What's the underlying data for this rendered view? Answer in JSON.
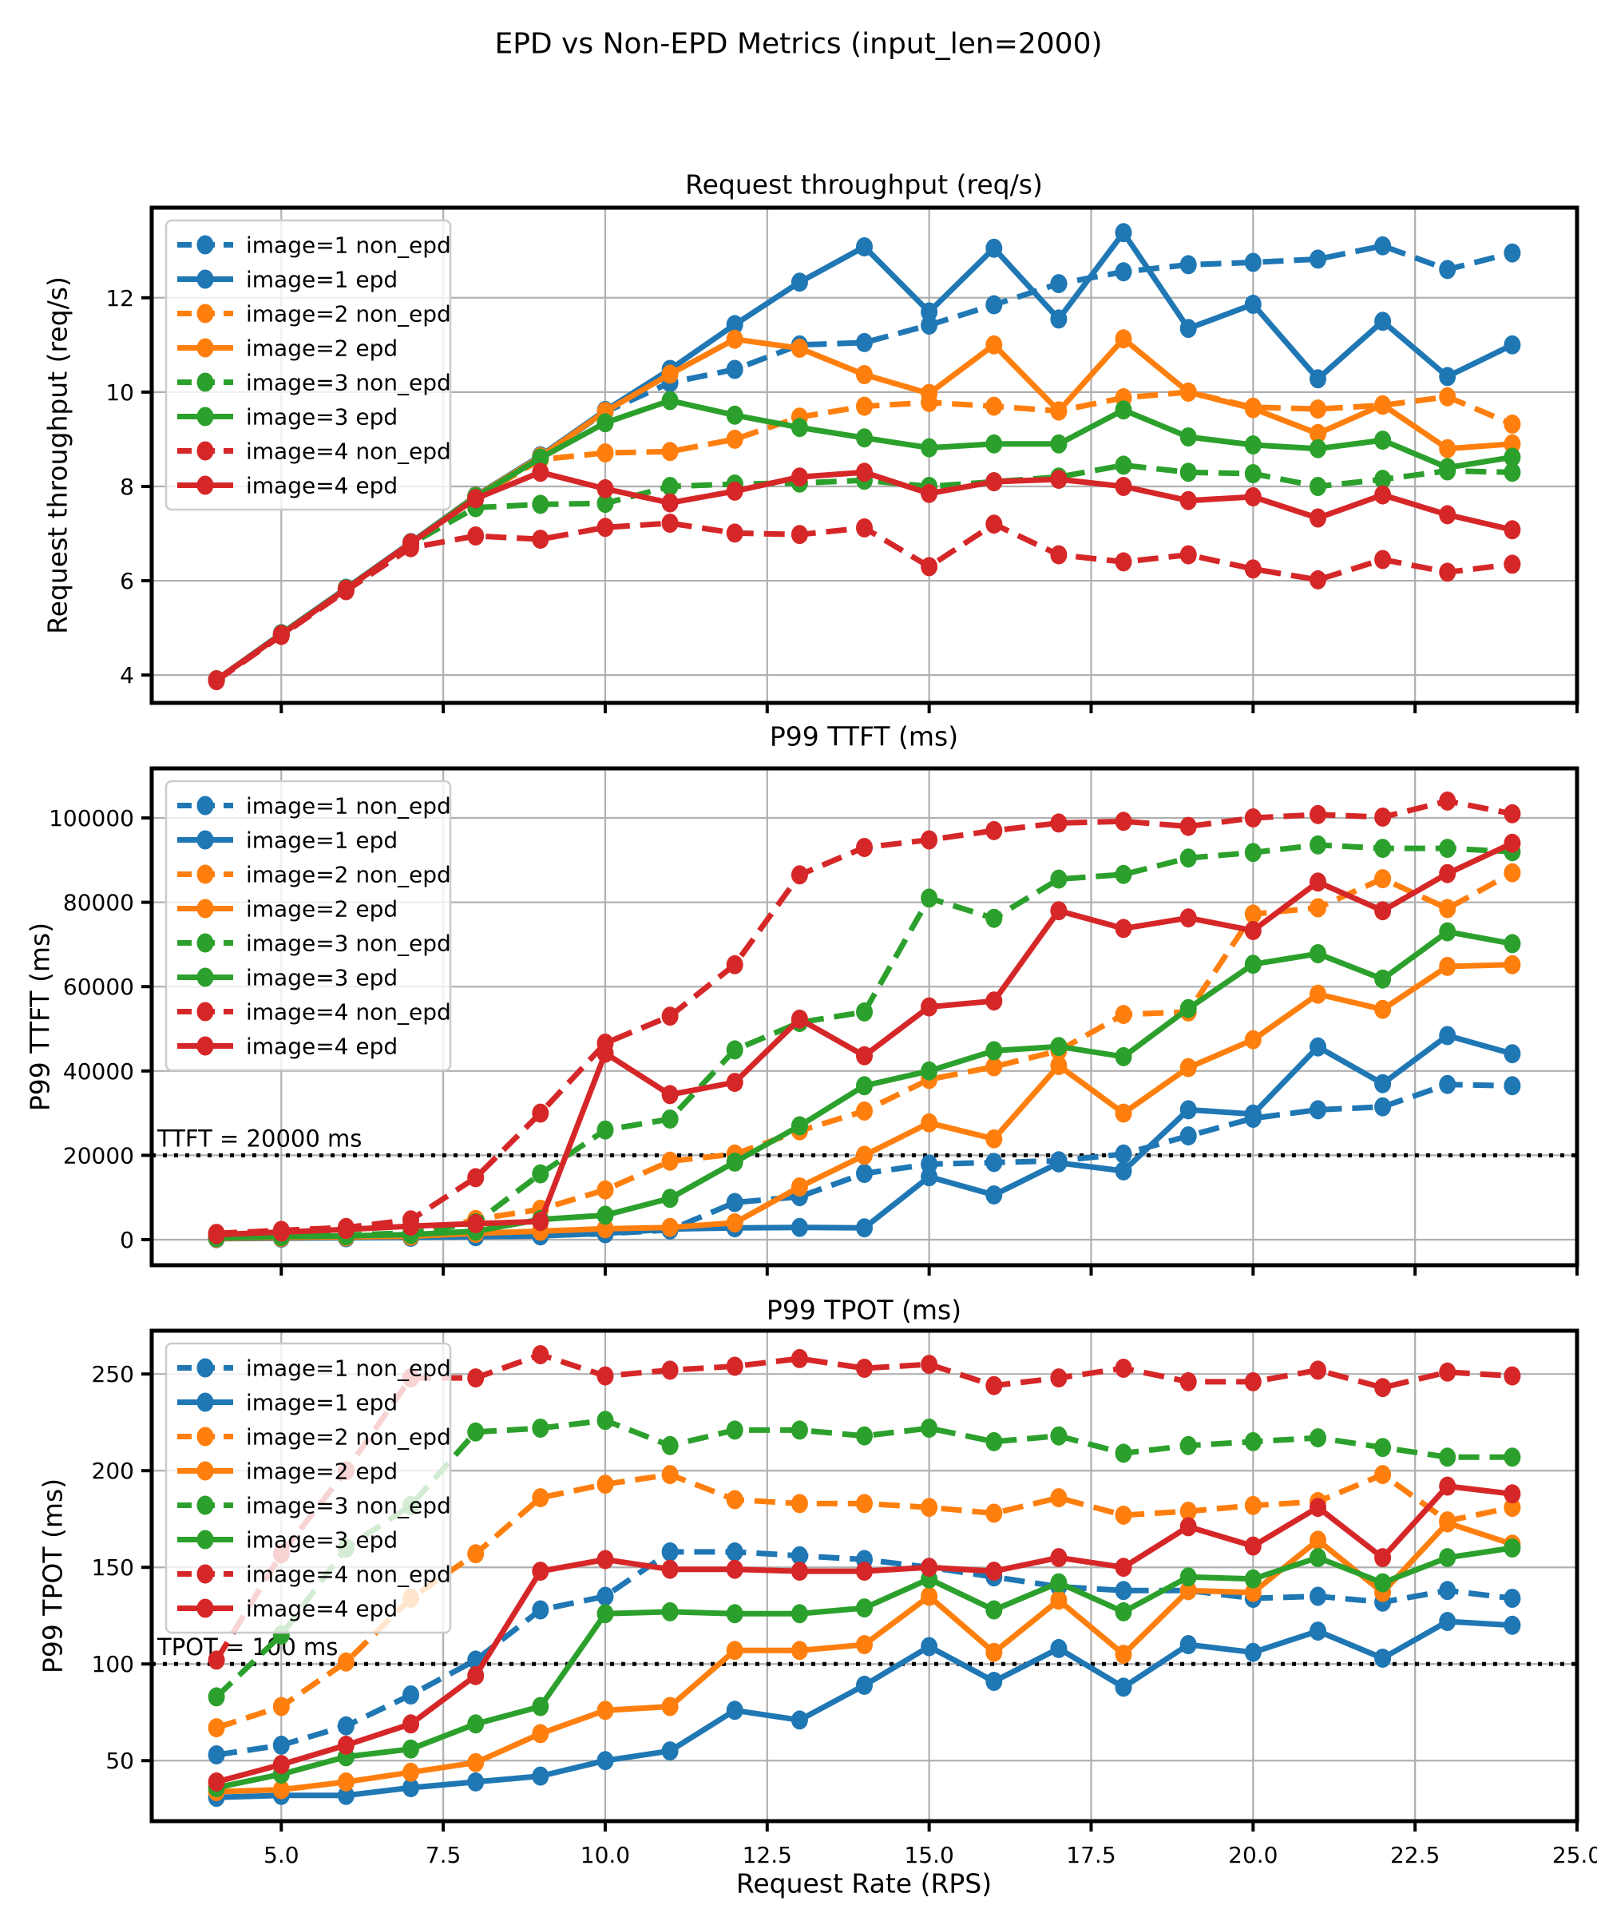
{
  "figure": {
    "suptitle": "EPD vs Non-EPD Metrics (input_len=2000)",
    "xlabel": "Request Rate (RPS)",
    "xtick_labels": [
      "5.0",
      "7.5",
      "10.0",
      "12.5",
      "15.0",
      "17.5",
      "20.0",
      "22.5",
      "25.0"
    ],
    "xtick_values": [
      5,
      7.5,
      10,
      12.5,
      15,
      17.5,
      20,
      22.5,
      25
    ]
  },
  "colors": {
    "blue": "#1f77b4",
    "orange": "#ff7f0e",
    "green": "#2ca02c",
    "red": "#d62728",
    "grid": "#b0b0b0",
    "spine": "#000000",
    "threshold": "#000000",
    "legend_border": "#cccccc"
  },
  "chart_data": [
    {
      "type": "line",
      "title": "Request throughput (req/s)",
      "ylabel": "Request throughput (req/s)",
      "x": [
        4,
        5,
        6,
        7,
        8,
        9,
        10,
        11,
        12,
        13,
        14,
        15,
        16,
        17,
        18,
        19,
        20,
        21,
        22,
        23,
        24
      ],
      "xlim": [
        3,
        25
      ],
      "ylim": [
        3.41,
        13.91
      ],
      "ytick_values": [
        4,
        6,
        8,
        10,
        12
      ],
      "ytick_labels": [
        "4",
        "6",
        "8",
        "10",
        "12"
      ],
      "threshold": null,
      "legend_position": "upper-left",
      "grid": true,
      "series": [
        {
          "label": "image=1 non_epd",
          "color": "blue",
          "dashed": true,
          "values": [
            3.9,
            4.87,
            5.83,
            6.8,
            7.78,
            8.62,
            9.58,
            10.2,
            10.48,
            11.0,
            11.05,
            11.42,
            11.85,
            12.3,
            12.55,
            12.7,
            12.75,
            12.82,
            13.1,
            12.6,
            12.95
          ]
        },
        {
          "label": "image=1 epd",
          "color": "blue",
          "dashed": false,
          "values": [
            3.9,
            4.88,
            5.84,
            6.81,
            7.8,
            8.65,
            9.61,
            10.48,
            11.43,
            12.33,
            13.08,
            11.7,
            13.05,
            11.55,
            13.38,
            11.35,
            11.86,
            10.28,
            11.5,
            10.33,
            11.0
          ]
        },
        {
          "label": "image=2 non_epd",
          "color": "orange",
          "dashed": true,
          "values": [
            3.9,
            4.86,
            5.82,
            6.79,
            7.75,
            8.57,
            8.71,
            8.74,
            9.0,
            9.47,
            9.7,
            9.78,
            9.7,
            9.6,
            9.88,
            10.0,
            9.68,
            9.64,
            9.72,
            9.9,
            9.32
          ]
        },
        {
          "label": "image=2 epd",
          "color": "orange",
          "dashed": false,
          "values": [
            3.9,
            4.87,
            5.83,
            6.8,
            7.79,
            8.63,
            9.59,
            10.38,
            11.12,
            10.93,
            10.37,
            9.97,
            11.0,
            9.6,
            11.13,
            10.0,
            9.65,
            9.12,
            9.73,
            8.8,
            8.9
          ]
        },
        {
          "label": "image=3 non_epd",
          "color": "green",
          "dashed": true,
          "values": [
            3.9,
            4.85,
            5.8,
            6.78,
            7.55,
            7.62,
            7.64,
            8.0,
            8.05,
            8.07,
            8.13,
            8.0,
            8.1,
            8.2,
            8.45,
            8.3,
            8.27,
            8.0,
            8.15,
            8.33,
            8.3
          ]
        },
        {
          "label": "image=3 epd",
          "color": "green",
          "dashed": false,
          "values": [
            3.9,
            4.87,
            5.83,
            6.8,
            7.78,
            8.6,
            9.35,
            9.82,
            9.51,
            9.25,
            9.03,
            8.82,
            8.9,
            8.9,
            9.62,
            9.05,
            8.88,
            8.8,
            8.98,
            8.4,
            8.62
          ]
        },
        {
          "label": "image=4 non_epd",
          "color": "red",
          "dashed": true,
          "values": [
            3.88,
            4.84,
            5.79,
            6.7,
            6.95,
            6.88,
            7.13,
            7.22,
            7.01,
            6.98,
            7.12,
            6.3,
            7.2,
            6.55,
            6.4,
            6.55,
            6.25,
            6.02,
            6.45,
            6.18,
            6.35
          ]
        },
        {
          "label": "image=4 epd",
          "color": "red",
          "dashed": false,
          "values": [
            3.9,
            4.86,
            5.82,
            6.8,
            7.74,
            8.3,
            7.95,
            7.65,
            7.9,
            8.2,
            8.3,
            7.85,
            8.1,
            8.15,
            8.0,
            7.7,
            7.78,
            7.33,
            7.82,
            7.4,
            7.08
          ]
        }
      ]
    },
    {
      "type": "line",
      "title": "P99 TTFT (ms)",
      "ylabel": "P99 TTFT (ms)",
      "x": [
        4,
        5,
        6,
        7,
        8,
        9,
        10,
        11,
        12,
        13,
        14,
        15,
        16,
        17,
        18,
        19,
        20,
        21,
        22,
        23,
        24
      ],
      "xlim": [
        3,
        25
      ],
      "ylim": [
        -6060,
        111750
      ],
      "ytick_values": [
        0,
        20000,
        40000,
        60000,
        80000,
        100000
      ],
      "ytick_labels": [
        "0",
        "20000",
        "40000",
        "60000",
        "80000",
        "100000"
      ],
      "threshold": {
        "value": 20000,
        "label": "TTFT = 20000 ms"
      },
      "legend_position": "upper-left",
      "grid": true,
      "series": [
        {
          "label": "image=1 non_epd",
          "color": "blue",
          "dashed": true,
          "values": [
            300,
            400,
            500,
            700,
            800,
            1000,
            1400,
            2300,
            8800,
            10200,
            15700,
            17900,
            18300,
            18700,
            20300,
            24600,
            28800,
            30800,
            31500,
            36800,
            36500
          ]
        },
        {
          "label": "image=1 epd",
          "color": "blue",
          "dashed": false,
          "values": [
            250,
            350,
            450,
            550,
            700,
            900,
            1500,
            2500,
            2800,
            2900,
            2800,
            14900,
            10600,
            18200,
            16300,
            30800,
            29800,
            45700,
            37000,
            48400,
            44100
          ]
        },
        {
          "label": "image=2 non_epd",
          "color": "orange",
          "dashed": true,
          "values": [
            400,
            550,
            700,
            900,
            4800,
            7200,
            11800,
            18600,
            20300,
            25800,
            30500,
            38000,
            41000,
            44800,
            53400,
            54000,
            77200,
            78700,
            85600,
            78500,
            87000
          ]
        },
        {
          "label": "image=2 epd",
          "color": "orange",
          "dashed": false,
          "values": [
            350,
            500,
            650,
            800,
            1500,
            2000,
            2600,
            2900,
            4000,
            12500,
            20000,
            27700,
            23900,
            41300,
            30000,
            40800,
            47400,
            58200,
            54600,
            64800,
            65200
          ]
        },
        {
          "label": "image=3 non_epd",
          "color": "green",
          "dashed": true,
          "values": [
            500,
            800,
            1100,
            1600,
            4000,
            15600,
            26000,
            28600,
            45000,
            51500,
            54000,
            81000,
            76200,
            85500,
            86600,
            90500,
            91800,
            93600,
            92800,
            92800,
            92000
          ]
        },
        {
          "label": "image=3 epd",
          "color": "green",
          "dashed": false,
          "values": [
            450,
            700,
            900,
            1200,
            2000,
            4800,
            5800,
            9800,
            18400,
            27000,
            36500,
            40000,
            44800,
            45800,
            43400,
            54800,
            65300,
            67800,
            61800,
            73000,
            70200
          ]
        },
        {
          "label": "image=4 non_epd",
          "color": "red",
          "dashed": true,
          "values": [
            1500,
            2200,
            2900,
            4700,
            14700,
            30000,
            46600,
            53000,
            65200,
            86500,
            93000,
            94800,
            97000,
            98800,
            99200,
            98000,
            100000,
            100800,
            100200,
            104000,
            101000
          ]
        },
        {
          "label": "image=4 epd",
          "color": "red",
          "dashed": false,
          "values": [
            1200,
            1800,
            2400,
            3200,
            3800,
            4300,
            44200,
            34400,
            37300,
            52300,
            43600,
            55200,
            56600,
            78000,
            73800,
            76300,
            73300,
            84800,
            78000,
            86800,
            94000
          ]
        }
      ]
    },
    {
      "type": "line",
      "title": "P99 TPOT (ms)",
      "ylabel": "P99 TPOT (ms)",
      "x": [
        4,
        5,
        6,
        7,
        8,
        9,
        10,
        11,
        12,
        13,
        14,
        15,
        16,
        17,
        18,
        19,
        20,
        21,
        22,
        23,
        24
      ],
      "xlim": [
        3,
        25
      ],
      "ylim": [
        18.7,
        272.4
      ],
      "ytick_values": [
        50,
        100,
        150,
        200,
        250
      ],
      "ytick_labels": [
        "50",
        "100",
        "150",
        "200",
        "250"
      ],
      "threshold": {
        "value": 100,
        "label": "TPOT = 100 ms"
      },
      "legend_position": "upper-left",
      "grid": true,
      "series": [
        {
          "label": "image=1 non_epd",
          "color": "blue",
          "dashed": true,
          "values": [
            53,
            58,
            68,
            84,
            102,
            128,
            135,
            158,
            158,
            156,
            154,
            150,
            145,
            140,
            138,
            138,
            134,
            135,
            132,
            138,
            134
          ]
        },
        {
          "label": "image=1 epd",
          "color": "blue",
          "dashed": false,
          "values": [
            31,
            32,
            32,
            36,
            39,
            42,
            50,
            55,
            76,
            71,
            89,
            109,
            91,
            108,
            88,
            110,
            106,
            117,
            103,
            122,
            120
          ]
        },
        {
          "label": "image=2 non_epd",
          "color": "orange",
          "dashed": true,
          "values": [
            67,
            78,
            101,
            134,
            157,
            186,
            193,
            198,
            185,
            183,
            183,
            181,
            178,
            186,
            177,
            179,
            182,
            184,
            198,
            174,
            181
          ]
        },
        {
          "label": "image=2 epd",
          "color": "orange",
          "dashed": false,
          "values": [
            34,
            35,
            39,
            44,
            49,
            64,
            76,
            78,
            107,
            107,
            110,
            135,
            106,
            133,
            105,
            138,
            137,
            164,
            137,
            173,
            162
          ]
        },
        {
          "label": "image=3 non_epd",
          "color": "green",
          "dashed": true,
          "values": [
            83,
            115,
            160,
            182,
            220,
            222,
            226,
            213,
            221,
            221,
            218,
            222,
            215,
            218,
            209,
            213,
            215,
            217,
            212,
            207,
            207
          ]
        },
        {
          "label": "image=3 epd",
          "color": "green",
          "dashed": false,
          "values": [
            36,
            43,
            52,
            56,
            69,
            78,
            126,
            127,
            126,
            126,
            129,
            144,
            128,
            142,
            127,
            145,
            144,
            155,
            142,
            155,
            160
          ]
        },
        {
          "label": "image=4 non_epd",
          "color": "red",
          "dashed": true,
          "values": [
            102,
            157,
            200,
            248,
            248,
            260,
            249,
            252,
            254,
            258,
            253,
            255,
            244,
            248,
            253,
            246,
            246,
            252,
            243,
            251,
            249
          ]
        },
        {
          "label": "image=4 epd",
          "color": "red",
          "dashed": false,
          "values": [
            39,
            48,
            58,
            69,
            94,
            148,
            154,
            149,
            149,
            148,
            148,
            150,
            148,
            155,
            150,
            171,
            161,
            181,
            155,
            192,
            188
          ]
        }
      ]
    }
  ]
}
